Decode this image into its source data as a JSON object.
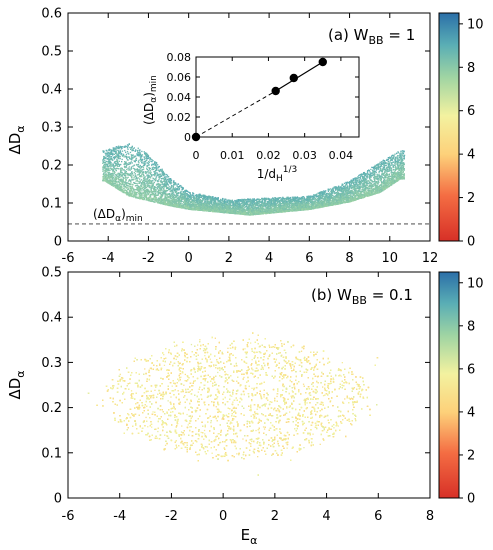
{
  "chart_data": [
    {
      "type": "scatter",
      "panel": "top",
      "annotation": "(a) W",
      "annotation_sub": "BB",
      "annotation_value": " = 1",
      "xlabel": "",
      "ylabel": "ΔD",
      "ylabel_sub": "α",
      "xlim": [
        -6,
        12
      ],
      "ylim": [
        0,
        0.6
      ],
      "xticks": [
        "-6",
        "-4",
        "-2",
        "0",
        "2",
        "4",
        "6",
        "8",
        "10",
        "12"
      ],
      "yticks": [
        "0",
        "0.1",
        "0.2",
        "0.3",
        "0.4",
        "0.5",
        "0.6"
      ],
      "xticks_position": "top-of-lower-panel",
      "colorbar": {
        "ticks": [
          "0",
          "2",
          "4",
          "6",
          "8",
          "10"
        ],
        "range": [
          0,
          10.5
        ],
        "colormap": "red-yellow-green-blue"
      },
      "reference_line": {
        "y": 0.045,
        "style": "dashed",
        "label": "(ΔD",
        "label_sub": "α",
        "label_end": ")",
        "label_sub2": "min"
      },
      "point_cloud": {
        "lower_envelope": [
          [
            -4.2,
            0.16
          ],
          [
            -3,
            0.12
          ],
          [
            -1,
            0.095
          ],
          [
            0,
            0.085
          ],
          [
            2,
            0.075
          ],
          [
            3,
            0.07
          ],
          [
            4,
            0.075
          ],
          [
            6,
            0.085
          ],
          [
            8,
            0.105
          ],
          [
            9.5,
            0.13
          ],
          [
            10.5,
            0.165
          ]
        ],
        "upper_envelope": [
          [
            -4.2,
            0.24
          ],
          [
            -3,
            0.26
          ],
          [
            -2,
            0.23
          ],
          [
            -1,
            0.17
          ],
          [
            0,
            0.13
          ],
          [
            2,
            0.11
          ],
          [
            4,
            0.115
          ],
          [
            6,
            0.12
          ],
          [
            8,
            0.16
          ],
          [
            9.5,
            0.21
          ],
          [
            10.5,
            0.24
          ]
        ],
        "color_value_range": [
          7,
          9.5
        ]
      },
      "inset": {
        "type": "line",
        "xlabel": "1/d",
        "xlabel_sub": "H",
        "xlabel_sup": "1/3",
        "ylabel": "(ΔD",
        "ylabel_sub": "α",
        "ylabel_end": ")",
        "ylabel_sub2": "min",
        "xlim": [
          0,
          0.045
        ],
        "ylim": [
          0,
          0.08
        ],
        "xticks": [
          "0",
          "0.01",
          "0.02",
          "0.03",
          "0.04"
        ],
        "yticks": [
          "0",
          "0.02",
          "0.04",
          "0.06",
          "0.08"
        ],
        "points": [
          [
            0,
            0
          ],
          [
            0.022,
            0.046
          ],
          [
            0.027,
            0.059
          ],
          [
            0.035,
            0.075
          ]
        ],
        "fit": "dashed extrapolation to origin, solid through data"
      }
    },
    {
      "type": "scatter",
      "panel": "bottom",
      "annotation": "(b) W",
      "annotation_sub": "BB",
      "annotation_value": " = 0.1",
      "xlabel": "E",
      "xlabel_sub": "α",
      "ylabel": "ΔD",
      "ylabel_sub": "α",
      "xlim": [
        -6,
        8
      ],
      "ylim": [
        0,
        0.5
      ],
      "xticks": [
        "-6",
        "-4",
        "-2",
        "0",
        "2",
        "4",
        "6",
        "8"
      ],
      "yticks": [
        "0",
        "0.1",
        "0.2",
        "0.3",
        "0.4",
        "0.5"
      ],
      "colorbar": {
        "ticks": [
          "0",
          "2",
          "4",
          "6",
          "8",
          "10"
        ],
        "range": [
          0,
          10.5
        ],
        "colormap": "red-yellow-green-blue"
      },
      "point_cloud": {
        "center": [
          0.5,
          0.22
        ],
        "x_half_width": 5.5,
        "y_range": [
          0.1,
          0.36
        ],
        "color_value_range": [
          4.5,
          6.2
        ]
      }
    }
  ]
}
